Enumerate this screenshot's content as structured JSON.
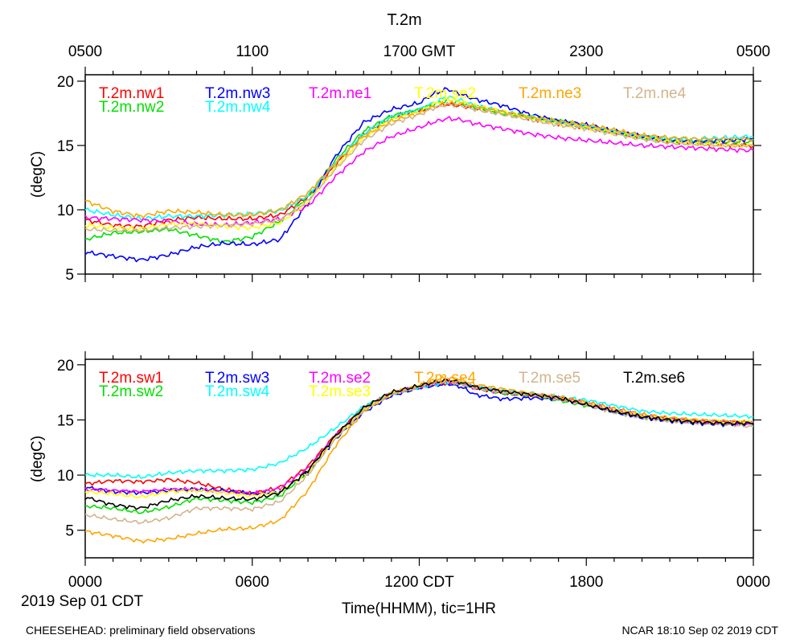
{
  "page": {
    "title": "T.2m",
    "footer_left": "CHEESEHEAD: preliminary field observations",
    "footer_right": "NCAR 18:10 Sep 02 2019 CDT",
    "date_label": "2019 Sep 01 CDT",
    "xlabel": "Time(HHMM), tic=1HR"
  },
  "chart_data": [
    {
      "type": "line",
      "panel": "top",
      "ylabel": "(degC)",
      "ylim": [
        5,
        20.5
      ],
      "yticks": [
        5,
        10,
        15,
        20
      ],
      "xlim": [
        0,
        24
      ],
      "top_axis_ticks": [
        {
          "x": 0,
          "label": "0500"
        },
        {
          "x": 6,
          "label": "1100"
        },
        {
          "x": 12,
          "label": "1700 GMT"
        },
        {
          "x": 18,
          "label": "2300"
        },
        {
          "x": 24,
          "label": "0500"
        }
      ],
      "x": [
        0,
        1,
        2,
        3,
        4,
        5,
        6,
        7,
        8,
        9,
        10,
        11,
        12,
        12.5,
        13,
        13.5,
        14,
        15,
        16,
        17,
        18,
        19,
        20,
        21,
        22,
        23,
        24
      ],
      "series": [
        {
          "name": "T.2m.nw1",
          "color": "#ff0000",
          "values": [
            9.2,
            8.8,
            8.7,
            9.2,
            9.4,
            9.3,
            9.3,
            9.6,
            11.0,
            13.5,
            15.9,
            17.2,
            17.7,
            18.0,
            18.2,
            18.1,
            17.9,
            17.6,
            17.1,
            16.7,
            16.4,
            16.0,
            15.6,
            15.3,
            15.2,
            15.1,
            15.0
          ]
        },
        {
          "name": "T.2m.nw2",
          "color": "#00e000",
          "values": [
            7.7,
            8.2,
            8.3,
            8.5,
            8.0,
            7.5,
            7.9,
            9.1,
            11.0,
            13.9,
            16.1,
            17.3,
            17.8,
            18.2,
            18.5,
            18.3,
            18.0,
            17.5,
            17.2,
            16.9,
            16.5,
            16.1,
            15.7,
            15.4,
            15.3,
            15.3,
            15.3
          ]
        },
        {
          "name": "T.2m.nw3",
          "color": "#0000ff",
          "values": [
            6.7,
            6.4,
            6.1,
            6.5,
            7.1,
            7.4,
            7.3,
            7.7,
            10.5,
            14.2,
            16.8,
            17.8,
            18.3,
            19.0,
            19.4,
            19.0,
            18.6,
            18.1,
            17.4,
            16.9,
            16.6,
            16.1,
            15.7,
            15.4,
            15.3,
            15.4,
            15.5
          ]
        },
        {
          "name": "T.2m.nw4",
          "color": "#00ffff",
          "values": [
            10.0,
            9.6,
            9.3,
            9.5,
            9.5,
            9.6,
            9.7,
            9.9,
            11.1,
            13.7,
            15.9,
            17.2,
            17.8,
            18.3,
            18.8,
            18.5,
            18.1,
            17.6,
            17.2,
            16.8,
            16.5,
            16.1,
            15.7,
            15.5,
            15.5,
            15.6,
            15.7
          ]
        },
        {
          "name": "T.2m.ne1",
          "color": "#ff00ff",
          "values": [
            9.4,
            9.3,
            9.2,
            9.1,
            8.9,
            8.8,
            9.0,
            9.3,
            10.3,
            12.6,
            14.5,
            15.7,
            16.4,
            16.8,
            17.1,
            17.0,
            16.7,
            16.3,
            15.9,
            15.6,
            15.4,
            15.2,
            15.0,
            14.9,
            14.8,
            14.7,
            14.6
          ]
        },
        {
          "name": "T.2m.se2",
          "color": "#ffff00",
          "values": [
            8.8,
            8.6,
            8.5,
            8.9,
            8.9,
            8.7,
            8.6,
            9.0,
            10.6,
            13.3,
            15.6,
            17.0,
            17.6,
            18.2,
            18.6,
            18.4,
            18.1,
            17.6,
            17.1,
            16.7,
            16.4,
            16.0,
            15.6,
            15.3,
            15.1,
            15.0,
            15.0
          ]
        },
        {
          "name": "T.2m.ne3",
          "color": "#ffa500",
          "values": [
            10.7,
            9.9,
            9.5,
            9.9,
            9.8,
            9.6,
            9.6,
            10.0,
            11.3,
            13.7,
            15.7,
            16.9,
            17.5,
            18.0,
            18.3,
            18.2,
            18.0,
            17.6,
            17.2,
            16.9,
            16.6,
            16.2,
            15.8,
            15.6,
            15.5,
            15.5,
            15.5
          ]
        },
        {
          "name": "T.2m.ne4",
          "color": "#d2b48c",
          "values": [
            8.5,
            8.4,
            8.4,
            8.6,
            8.7,
            8.8,
            8.9,
            9.2,
            10.7,
            13.2,
            15.4,
            16.7,
            17.4,
            17.9,
            18.2,
            18.1,
            17.8,
            17.4,
            17.0,
            16.6,
            16.3,
            15.9,
            15.5,
            15.2,
            15.1,
            15.0,
            15.0
          ]
        }
      ]
    },
    {
      "type": "line",
      "panel": "bottom",
      "ylabel": "(degC)",
      "ylim": [
        2.5,
        20.5
      ],
      "yticks": [
        5,
        10,
        15,
        20
      ],
      "xlim": [
        0,
        24
      ],
      "bottom_axis_ticks": [
        {
          "x": 0,
          "label": "0000"
        },
        {
          "x": 6,
          "label": "0600"
        },
        {
          "x": 12,
          "label": "1200 CDT"
        },
        {
          "x": 18,
          "label": "1800"
        },
        {
          "x": 24,
          "label": "0000"
        }
      ],
      "x": [
        0,
        1,
        2,
        3,
        4,
        5,
        6,
        7,
        8,
        9,
        10,
        11,
        12,
        12.5,
        13,
        13.5,
        14,
        15,
        16,
        17,
        18,
        19,
        20,
        21,
        22,
        23,
        24
      ],
      "series": [
        {
          "name": "T.2m.sw1",
          "color": "#ff0000",
          "values": [
            9.2,
            9.5,
            9.4,
            9.6,
            9.3,
            8.7,
            8.3,
            8.9,
            10.8,
            13.7,
            16.1,
            17.4,
            18.0,
            18.2,
            18.3,
            18.2,
            17.9,
            17.5,
            17.3,
            17.0,
            16.6,
            16.0,
            15.5,
            15.1,
            14.9,
            14.8,
            14.8
          ]
        },
        {
          "name": "T.2m.sw2",
          "color": "#00e000",
          "values": [
            7.2,
            7.0,
            6.6,
            7.1,
            7.9,
            7.7,
            7.5,
            8.1,
            10.3,
            13.5,
            16.1,
            17.4,
            18.0,
            18.3,
            18.5,
            18.3,
            17.9,
            17.4,
            17.2,
            16.8,
            16.3,
            15.8,
            15.3,
            15.0,
            14.8,
            14.7,
            14.7
          ]
        },
        {
          "name": "T.2m.sw3",
          "color": "#0000ff",
          "values": [
            8.9,
            8.5,
            8.4,
            8.6,
            8.7,
            8.6,
            8.3,
            8.5,
            10.2,
            13.3,
            15.7,
            17.2,
            17.9,
            18.1,
            18.3,
            18.0,
            17.3,
            16.9,
            17.0,
            16.9,
            16.4,
            15.7,
            15.2,
            14.9,
            14.7,
            14.6,
            14.6
          ]
        },
        {
          "name": "T.2m.sw4",
          "color": "#00ffff",
          "values": [
            10.0,
            10.0,
            9.8,
            10.2,
            10.4,
            10.4,
            10.5,
            11.1,
            12.5,
            14.3,
            16.2,
            17.4,
            18.0,
            18.2,
            18.4,
            18.3,
            18.0,
            17.6,
            17.4,
            17.1,
            16.8,
            16.3,
            15.8,
            15.6,
            15.5,
            15.4,
            15.3
          ]
        },
        {
          "name": "T.2m.se2",
          "color": "#ff00ff",
          "values": [
            8.7,
            8.6,
            8.5,
            8.7,
            8.7,
            8.5,
            8.3,
            8.8,
            10.6,
            13.6,
            16.0,
            17.4,
            18.0,
            18.3,
            18.5,
            18.3,
            17.9,
            17.5,
            17.3,
            17.0,
            16.5,
            15.9,
            15.4,
            15.1,
            14.9,
            14.8,
            14.7
          ]
        },
        {
          "name": "T.2m.se3",
          "color": "#ffff00",
          "values": [
            8.5,
            8.3,
            8.0,
            8.5,
            8.6,
            8.4,
            8.1,
            8.5,
            10.2,
            13.4,
            15.9,
            17.4,
            18.1,
            18.4,
            18.6,
            18.4,
            18.0,
            17.6,
            17.3,
            17.0,
            16.5,
            15.9,
            15.4,
            15.1,
            14.9,
            14.8,
            14.8
          ]
        },
        {
          "name": "T.2m.se4",
          "color": "#ffa500",
          "values": [
            4.9,
            4.5,
            4.0,
            4.2,
            4.7,
            5.1,
            5.2,
            5.9,
            8.6,
            12.7,
            15.8,
            17.4,
            18.1,
            18.6,
            18.8,
            18.6,
            18.2,
            17.8,
            17.4,
            17.1,
            16.6,
            16.0,
            15.5,
            15.2,
            15.0,
            14.9,
            14.8
          ]
        },
        {
          "name": "T.2m.se5",
          "color": "#d2b48c",
          "values": [
            6.4,
            6.0,
            5.7,
            6.1,
            7.0,
            7.0,
            6.9,
            7.6,
            10.0,
            13.4,
            15.9,
            17.4,
            18.0,
            18.4,
            18.5,
            18.3,
            17.9,
            17.5,
            17.3,
            16.9,
            16.4,
            15.7,
            15.2,
            14.9,
            14.7,
            14.6,
            14.4
          ]
        },
        {
          "name": "T.2m.se6",
          "color": "#000000",
          "values": [
            8.0,
            7.3,
            7.0,
            7.7,
            8.1,
            7.9,
            7.8,
            8.4,
            10.4,
            13.6,
            16.1,
            17.5,
            18.1,
            18.4,
            18.6,
            18.4,
            18.0,
            17.6,
            17.3,
            17.0,
            16.4,
            15.8,
            15.3,
            15.0,
            14.8,
            14.7,
            14.7
          ]
        }
      ]
    }
  ]
}
